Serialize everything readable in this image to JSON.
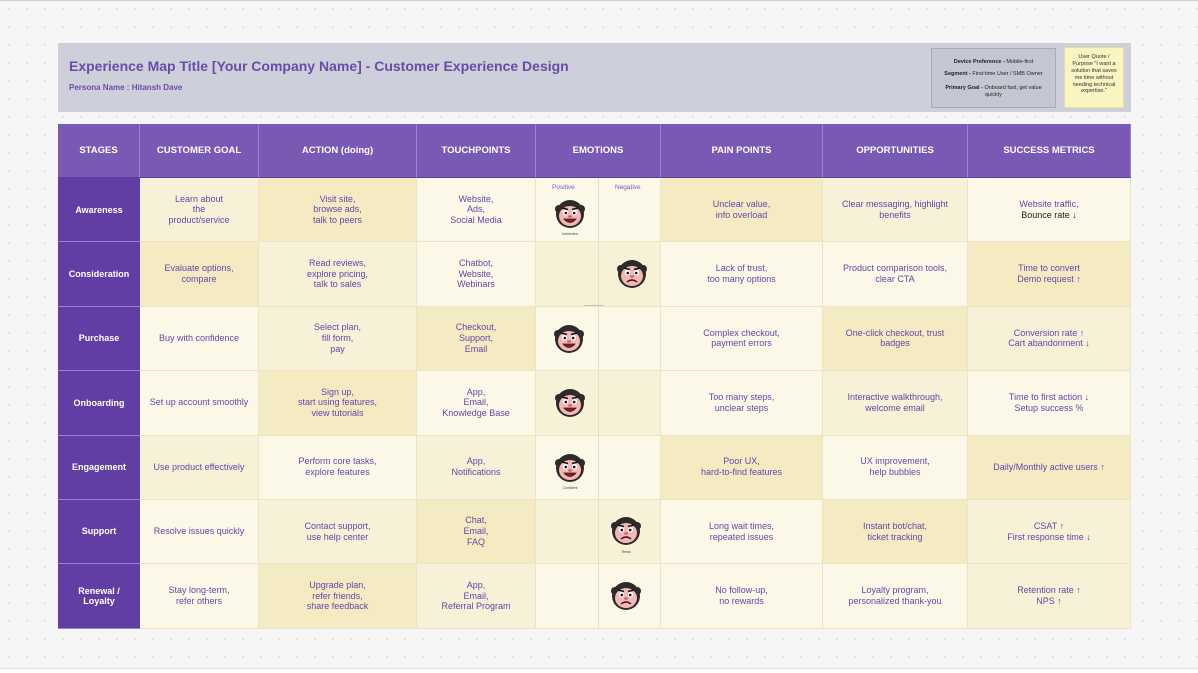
{
  "header": {
    "title": "Experience Map Title [Your Company Name] - Customer Experience Design",
    "persona": "Persona Name : Hitansh Dave",
    "info": {
      "device_label": "Device Preference -",
      "device_value": " Mobile-first",
      "segment_label": "Segment -",
      "segment_value": " First-time User / SMB Owner",
      "goal_label": "Primary Goal -",
      "goal_value": " Onboard fast, get value quickly"
    },
    "quote": "User Quote / Purpose \"I want a solution that saves me time without needing technical expertise.\""
  },
  "columns": [
    "STAGES",
    "CUSTOMER GOAL",
    "ACTION (doing)",
    "TOUCHPOINTS",
    "EMOTIONS",
    "PAIN POINTS",
    "OPPORTUNITIES",
    "SUCCESS METRICS"
  ],
  "emotion_labels": {
    "positive": "Positive",
    "negative": "Negative"
  },
  "rows": [
    {
      "stage": "Awareness",
      "goal": "Learn about\nthe\nproduct/service",
      "action": "Visit site,\nbrowse ads,\ntalk to peers",
      "touchpoints": "Website,\nAds,\nSocial Media",
      "emotion": "positive",
      "emotion_caption": "Interested",
      "pain": "Unclear value,\ninfo overload",
      "opportunity": "Clear messaging, highlight\nbenefits",
      "metric_1": "Website traffic,",
      "metric_2": "Bounce rate ↓"
    },
    {
      "stage": "Consideration",
      "goal": "Evaluate options,\ncompare",
      "action": "Read reviews,\nexplore pricing,\ntalk to sales",
      "touchpoints": "Chatbot,\nWebsite,\nWebinars",
      "emotion": "negative",
      "emotion_caption": "",
      "pain": "Lack of trust,\ntoo many options",
      "opportunity": "Product comparison tools,\nclear CTA",
      "metric_1": "Time to convert\nDemo request ↑",
      "metric_2": ""
    },
    {
      "stage": "Purchase",
      "goal": "Buy with confidence",
      "action": "Select plan,\nfill form,\npay",
      "touchpoints": "Checkout,\nSupport,\nEmail",
      "emotion": "positive",
      "emotion_caption": "",
      "pain": "Complex checkout,\npayment errors",
      "opportunity": "One-click checkout, trust\nbadges",
      "metric_1": "Conversion rate ↑\nCart abandonment ↓",
      "metric_2": ""
    },
    {
      "stage": "Onboarding",
      "goal": "Set up account smoothly",
      "action": "Sign up,\nstart using features,\nview tutorials",
      "touchpoints": "App,\nEmail,\nKnowledge Base",
      "emotion": "positive",
      "emotion_caption": "",
      "pain": "Too many steps,\nunclear steps",
      "opportunity": "Interactive walkthrough,\nwelcome email",
      "metric_1": "Time to first action ↓\nSetup success %",
      "metric_2": ""
    },
    {
      "stage": "Engagement",
      "goal": "Use product effectively",
      "action": "Perform core tasks,\nexplore features",
      "touchpoints": "App,\nNotifications",
      "emotion": "positive",
      "emotion_caption": "Confident",
      "pain": "Poor UX,\nhard-to-find features",
      "opportunity": "UX improvement,\nhelp bubbles",
      "metric_1": "Daily/Monthly active users ↑",
      "metric_2": ""
    },
    {
      "stage": "Support",
      "goal": "Resolve issues quickly",
      "action": "Contact support,\nuse help center",
      "touchpoints": "Chat,\nEmail,\nFAQ",
      "emotion": "negative",
      "emotion_caption": "Tense",
      "pain": "Long wait times,\nrepeated issues",
      "opportunity": "Instant bot/chat,\nticket tracking",
      "metric_1": "CSAT ↑\nFirst response time ↓",
      "metric_2": ""
    },
    {
      "stage": "Renewal /\nLoyalty",
      "goal": "Stay long-term,\nrefer others",
      "action": "Upgrade plan,\nrefer friends,\nshare feedback",
      "touchpoints": "App,\nEmail,\nReferral Program",
      "emotion": "negative",
      "emotion_caption": "",
      "pain": "No follow-up,\nno rewards",
      "opportunity": "Loyalty program,\npersonalized thank-you",
      "metric_1": "Retention rate ↑\nNPS ↑",
      "metric_2": ""
    }
  ],
  "colors": {
    "header_purple": "#7a59b5",
    "stage_purple": "#613ea3",
    "text_purple": "#6645a8",
    "cream_light": "#fcf8e8",
    "cream_dark": "#f5ebc3"
  },
  "icons": {
    "emotion": "cartoon-face-icon"
  }
}
